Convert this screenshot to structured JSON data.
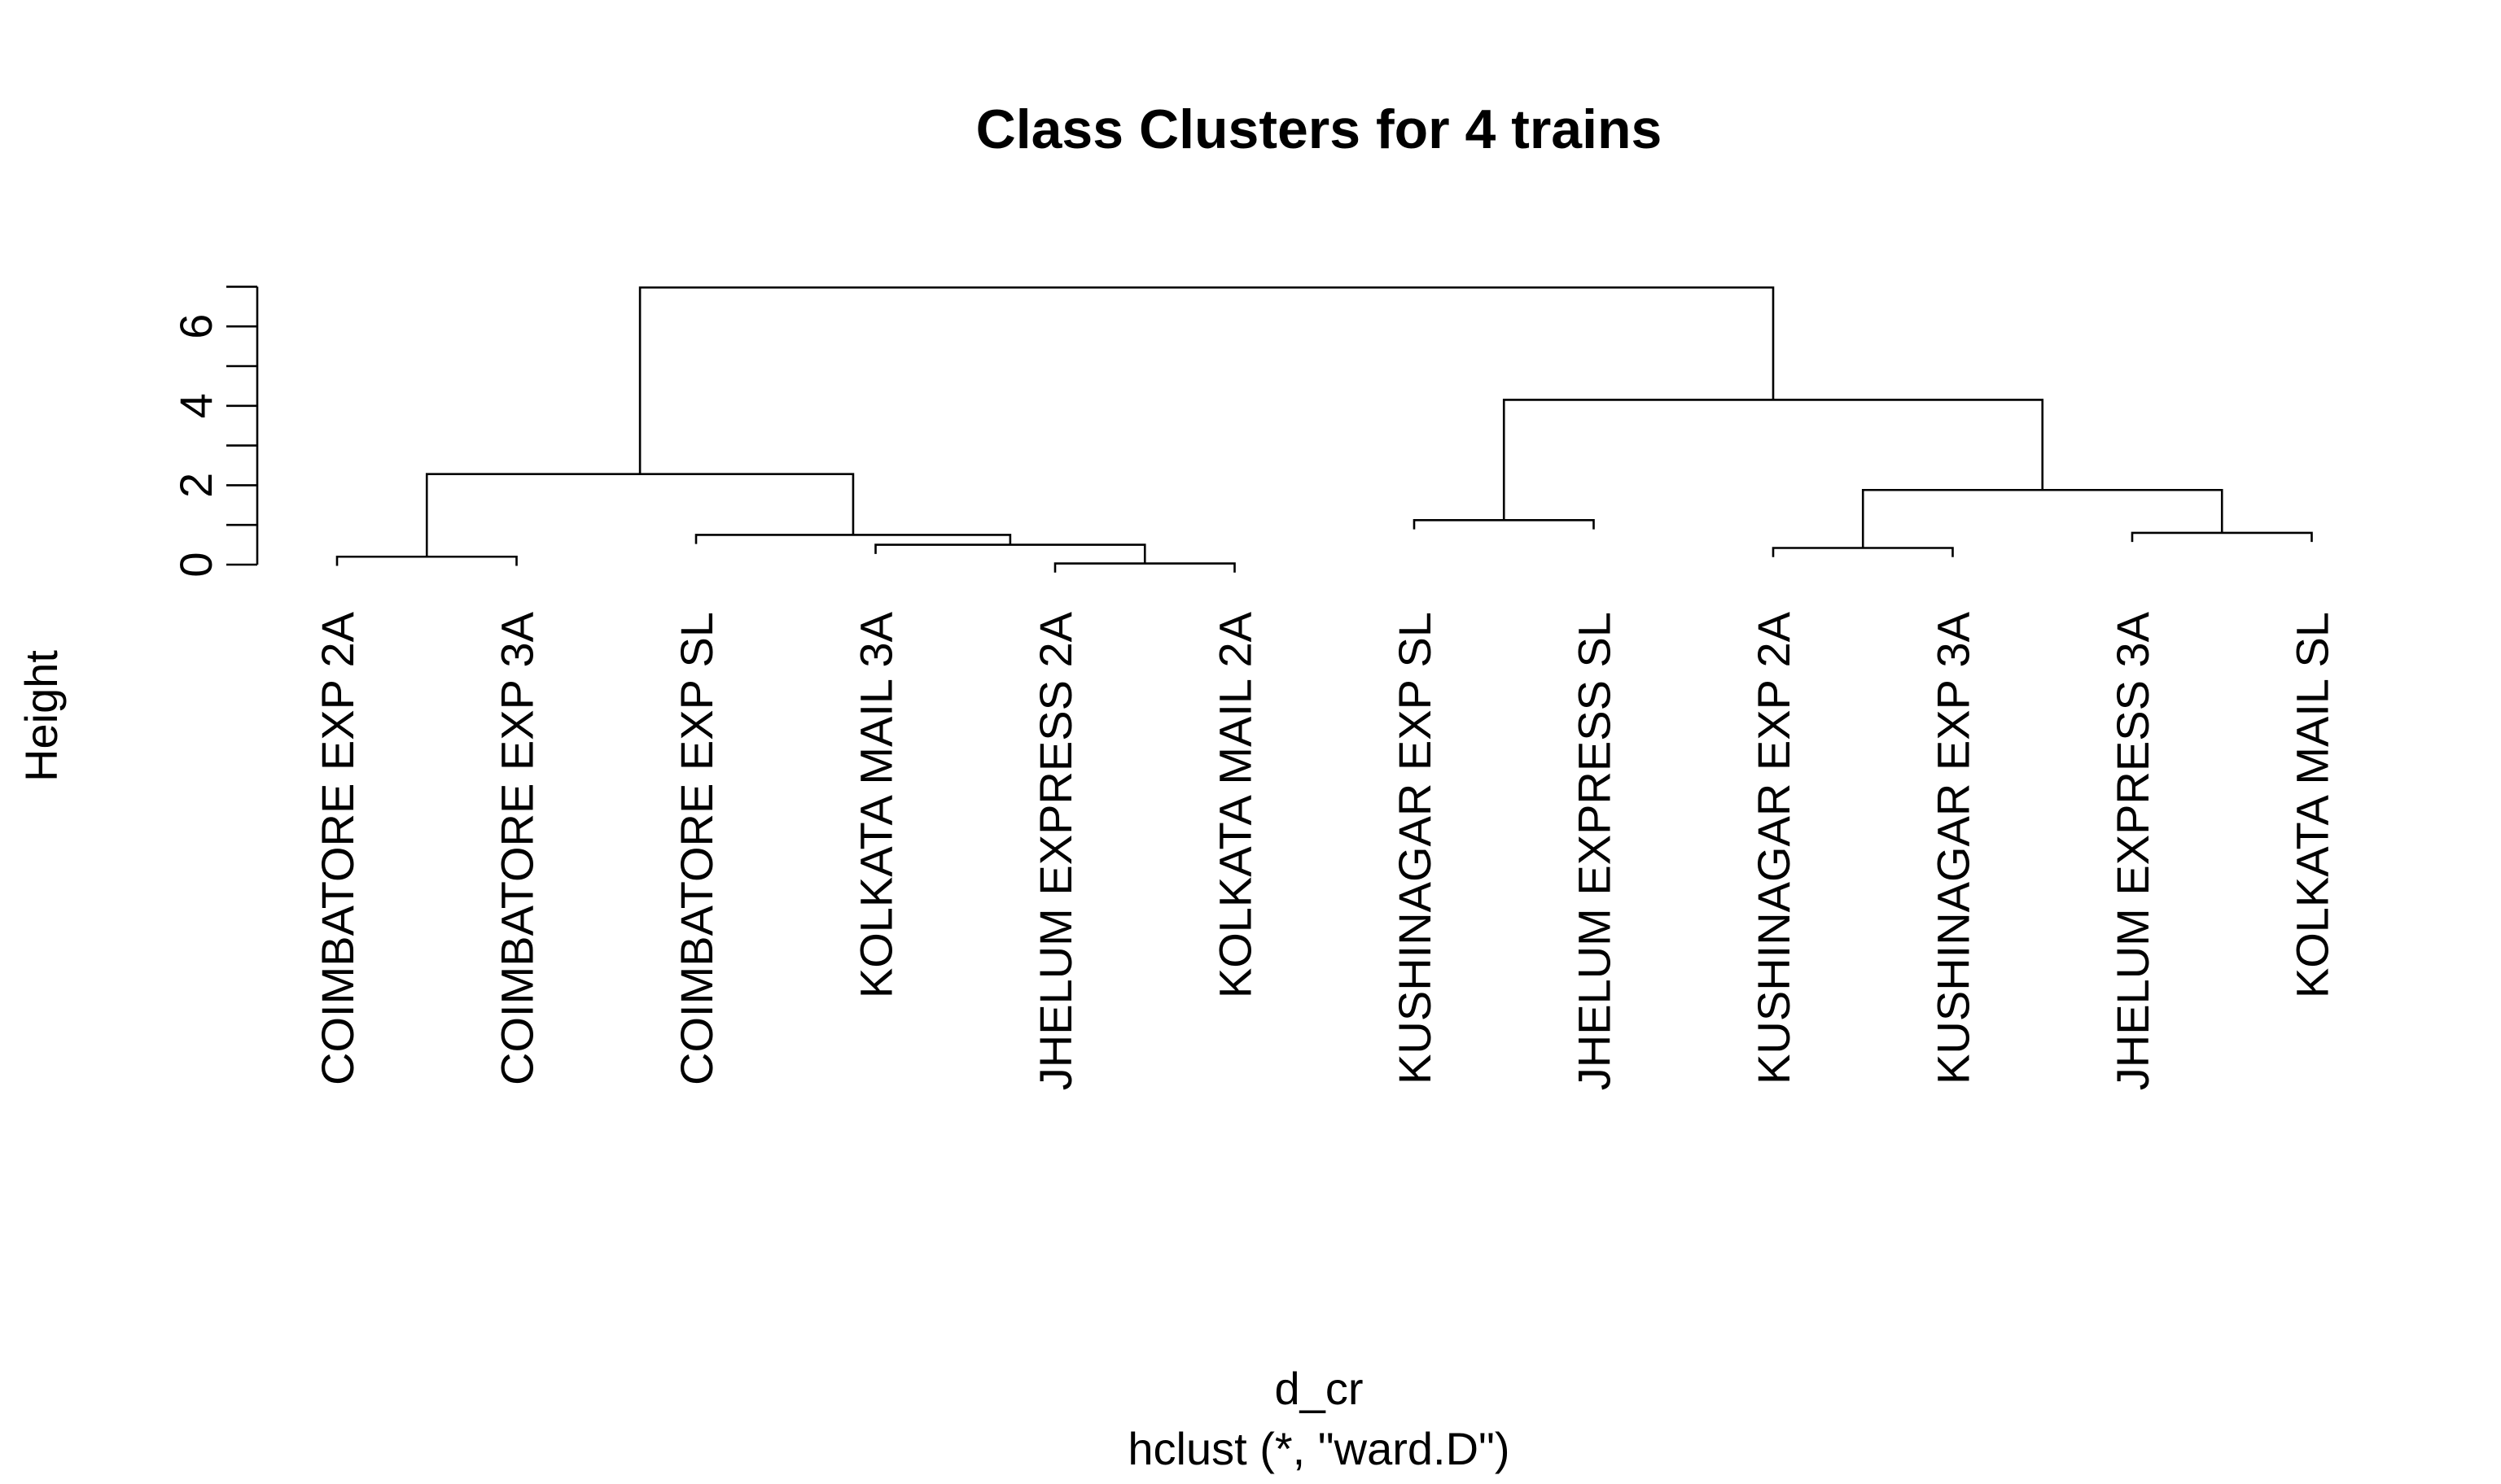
{
  "chart_data": {
    "type": "dendrogram",
    "title": "Class Clusters for 4 trains",
    "ylabel": "Height",
    "xlabel": "d_cr",
    "sub": "hclust (*, \"ward.D\")",
    "ylim": [
      0,
      7
    ],
    "yticks": [
      0,
      1,
      2,
      3,
      4,
      5,
      6,
      7
    ],
    "ytick_labels": [
      0,
      2,
      4,
      6
    ],
    "hang": 0.1,
    "labels": [
      "COIMBATORE EXP 2A",
      "COIMBATORE EXP 3A",
      "COIMBATORE EXP SL",
      "KOLKATA MAIL 3A",
      "JHELUM EXPRESS 2A",
      "KOLKATA MAIL 2A",
      "KUSHINAGAR EXP SL",
      "JHELUM EXPRESS SL",
      "KUSHINAGAR EXP 2A",
      "KUSHINAGAR EXP 3A",
      "JHELUM EXPRESS 3A",
      "KOLKATA MAIL SL"
    ],
    "merges": [
      {
        "id": "m1",
        "left": "leaf:4",
        "right": "leaf:5",
        "height": 0.03
      },
      {
        "id": "m2",
        "left": "leaf:0",
        "right": "leaf:1",
        "height": 0.2
      },
      {
        "id": "m3",
        "left": "leaf:8",
        "right": "leaf:9",
        "height": 0.42
      },
      {
        "id": "m4",
        "left": "leaf:3",
        "right": "m1",
        "height": 0.5
      },
      {
        "id": "m5",
        "left": "leaf:2",
        "right": "m4",
        "height": 0.75
      },
      {
        "id": "m6",
        "left": "leaf:10",
        "right": "leaf:11",
        "height": 0.8
      },
      {
        "id": "m7",
        "left": "leaf:6",
        "right": "leaf:7",
        "height": 1.12
      },
      {
        "id": "m8",
        "left": "m3",
        "right": "m6",
        "height": 1.88
      },
      {
        "id": "m9",
        "left": "m2",
        "right": "m5",
        "height": 2.28
      },
      {
        "id": "m10",
        "left": "m7",
        "right": "m8",
        "height": 4.15
      },
      {
        "id": "m11",
        "left": "m9",
        "right": "m10",
        "height": 6.98
      }
    ]
  }
}
